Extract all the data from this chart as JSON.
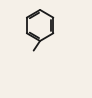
{
  "bg_color": "#f5f0e8",
  "line_color": "#1a1a1a",
  "line_width": 1.3,
  "font_size": 6.5,
  "xlim": [
    0.05,
    0.95
  ],
  "ylim": [
    0.05,
    1.0
  ]
}
